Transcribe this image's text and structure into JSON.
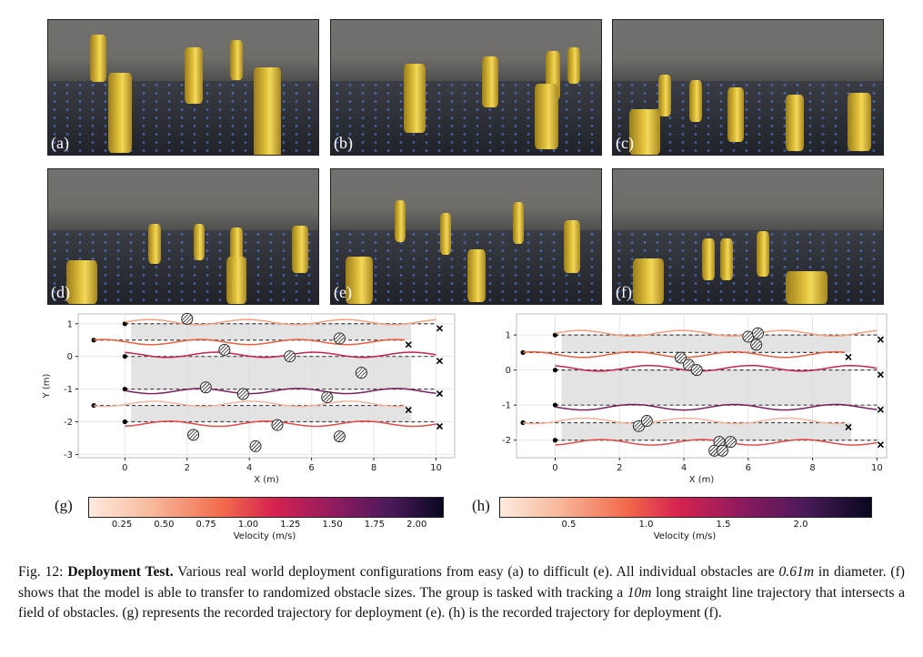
{
  "photos": [
    {
      "label": "(a)"
    },
    {
      "label": "(b)"
    },
    {
      "label": "(c)"
    },
    {
      "label": "(d)"
    },
    {
      "label": "(e)"
    },
    {
      "label": "(f)"
    }
  ],
  "chart_data": [
    {
      "panel": "(g)",
      "type": "line",
      "xlabel": "X (m)",
      "ylabel": "Y (m)",
      "xlim": [
        -1.5,
        10.6
      ],
      "ylim": [
        -3.1,
        1.3
      ],
      "x_ticks": [
        0,
        2,
        4,
        6,
        8,
        10
      ],
      "y_ticks": [
        1,
        0,
        -1,
        -2,
        -3
      ],
      "grid": true,
      "reference_lines": [
        {
          "y": 1.0,
          "x": [
            0,
            10
          ]
        },
        {
          "y": 0.5,
          "x": [
            -1,
            9
          ]
        },
        {
          "y": 0.0,
          "x": [
            0,
            10
          ]
        },
        {
          "y": -1.0,
          "x": [
            0,
            10
          ]
        },
        {
          "y": -1.5,
          "x": [
            -1,
            9
          ]
        },
        {
          "y": -2.0,
          "x": [
            0,
            10
          ]
        }
      ],
      "obstacles": [
        [
          2.0,
          1.15
        ],
        [
          3.2,
          0.2
        ],
        [
          5.3,
          0.0
        ],
        [
          6.9,
          0.55
        ],
        [
          7.6,
          -0.5
        ],
        [
          2.6,
          -0.95
        ],
        [
          3.8,
          -1.15
        ],
        [
          6.5,
          -1.25
        ],
        [
          2.2,
          -2.4
        ],
        [
          4.9,
          -2.1
        ],
        [
          4.2,
          -2.75
        ],
        [
          6.9,
          -2.45
        ]
      ],
      "colorbar": {
        "label": "Velocity (m/s)",
        "ticks": [
          "0.25",
          "0.50",
          "0.75",
          "1.00",
          "1.25",
          "1.50",
          "1.75",
          "2.00"
        ],
        "min": 0.05,
        "max": 2.15
      }
    },
    {
      "panel": "(h)",
      "type": "line",
      "xlabel": "X (m)",
      "ylabel": "",
      "xlim": [
        -1.2,
        10.3
      ],
      "ylim": [
        -2.5,
        1.6
      ],
      "x_ticks": [
        0,
        2,
        4,
        6,
        8,
        10
      ],
      "y_ticks": [
        1,
        0,
        -1,
        -2
      ],
      "grid": true,
      "reference_lines": [
        {
          "y": 1.0,
          "x": [
            0,
            10
          ]
        },
        {
          "y": 0.5,
          "x": [
            -1,
            9
          ]
        },
        {
          "y": 0.0,
          "x": [
            0,
            10
          ]
        },
        {
          "y": -1.0,
          "x": [
            0,
            10
          ]
        },
        {
          "y": -1.5,
          "x": [
            -1,
            9
          ]
        },
        {
          "y": -2.0,
          "x": [
            0,
            10
          ]
        }
      ],
      "obstacles": [
        [
          6.0,
          0.95
        ],
        [
          6.3,
          1.05
        ],
        [
          6.25,
          0.72
        ],
        [
          3.9,
          0.35
        ],
        [
          4.15,
          0.15
        ],
        [
          4.4,
          0.0
        ],
        [
          2.6,
          -1.6
        ],
        [
          2.85,
          -1.45
        ],
        [
          5.1,
          -2.05
        ],
        [
          5.45,
          -2.05
        ],
        [
          4.95,
          -2.3
        ],
        [
          5.2,
          -2.3
        ]
      ],
      "colorbar": {
        "label": "Velocity (m/s)",
        "ticks": [
          "0.5",
          "1.0",
          "1.5",
          "2.0"
        ],
        "min": 0.05,
        "max": 2.45
      }
    }
  ],
  "panel_labels": {
    "g": "(g)",
    "h": "(h)"
  },
  "caption": {
    "prefix": "Fig. 12: ",
    "bold": "Deployment Test.",
    "part1": " Various real world deployment configurations from easy (a) to difficult (e). All individual obstacles are ",
    "math1": "0.61m",
    "part2": " in diameter. (f) shows that the model is able to transfer to randomized obstacle sizes. The group is tasked with tracking a ",
    "math2": "10m",
    "part3": " long straight line trajectory that intersects a field of obstacles. (g) represents the recorded trajectory for deployment (e). (h) is the recorded trajectory for deployment (f)."
  }
}
